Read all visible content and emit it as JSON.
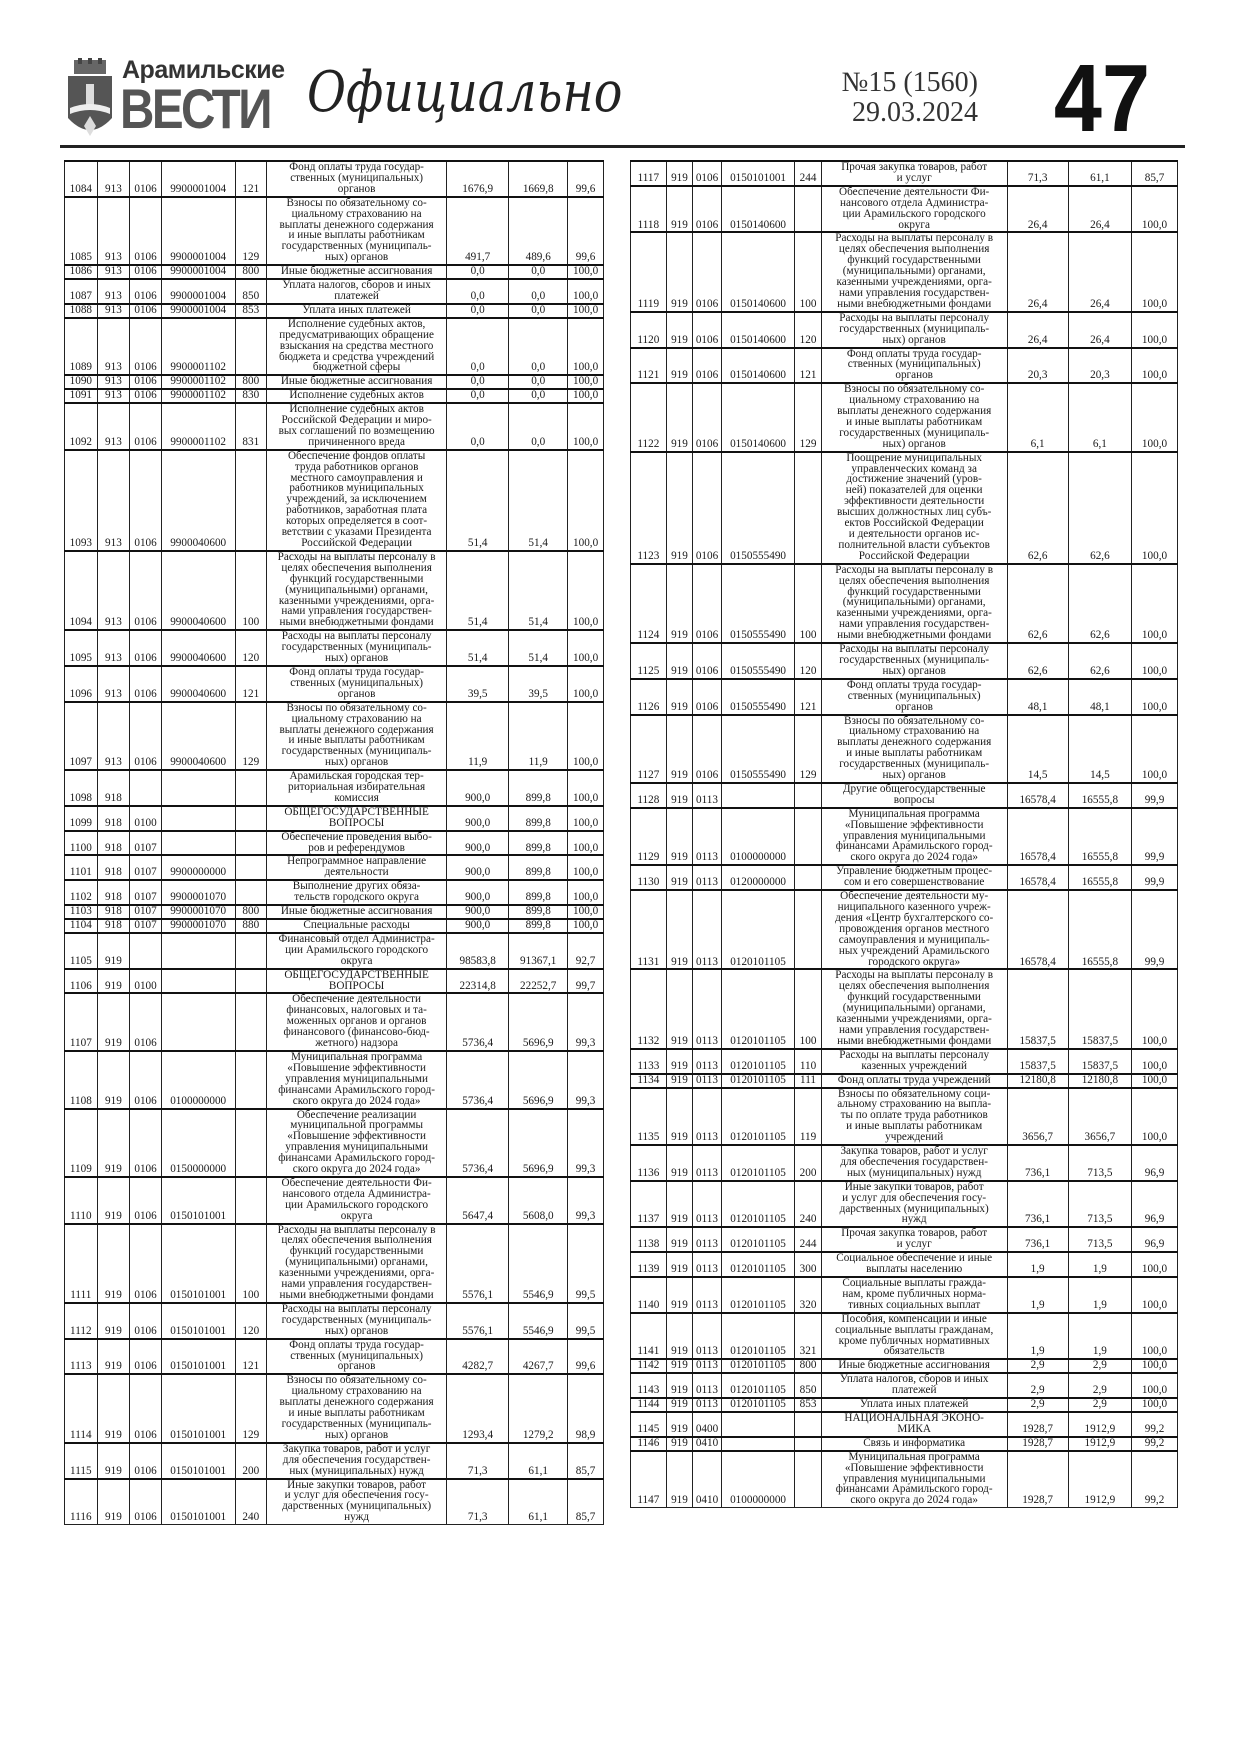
{
  "header": {
    "brand_line1": "Арамильские",
    "brand_line2": "ВЕСТИ",
    "section": "Официально",
    "issue": "№15 (1560)",
    "date": "29.03.2024",
    "page_number": "47"
  },
  "left_rows": [
    [
      "1084",
      "913",
      "0106",
      "9900001004",
      "121",
      "Фонд оплаты труда государ-\nственных (муниципальных)\nорганов",
      "1676,9",
      "1669,8",
      "99,6"
    ],
    [
      "1085",
      "913",
      "0106",
      "9900001004",
      "129",
      "Взносы по обязательному со-\nциальному страхованию на\nвыплаты денежного содержания\nи иные выплаты работникам\nгосударственных (муниципаль-\nных) органов",
      "491,7",
      "489,6",
      "99,6"
    ],
    [
      "1086",
      "913",
      "0106",
      "9900001004",
      "800",
      "Иные бюджетные ассигнования",
      "0,0",
      "0,0",
      "100,0"
    ],
    [
      "1087",
      "913",
      "0106",
      "9900001004",
      "850",
      "Уплата налогов, сборов и иных\nплатежей",
      "0,0",
      "0,0",
      "100,0"
    ],
    [
      "1088",
      "913",
      "0106",
      "9900001004",
      "853",
      "Уплата иных платежей",
      "0,0",
      "0,0",
      "100,0"
    ],
    [
      "1089",
      "913",
      "0106",
      "9900001102",
      "",
      "Исполнение судебных актов,\nпредусматривающих обращение\nвзыскания на средства местного\nбюджета и средства учреждений\nбюджетной сферы",
      "0,0",
      "0,0",
      "100,0"
    ],
    [
      "1090",
      "913",
      "0106",
      "9900001102",
      "800",
      "Иные бюджетные ассигнования",
      "0,0",
      "0,0",
      "100,0"
    ],
    [
      "1091",
      "913",
      "0106",
      "9900001102",
      "830",
      "Исполнение судебных актов",
      "0,0",
      "0,0",
      "100,0"
    ],
    [
      "1092",
      "913",
      "0106",
      "9900001102",
      "831",
      "Исполнение судебных актов\nРоссийской Федерации и миро-\nвых соглашений по возмещению\nпричиненного вреда",
      "0,0",
      "0,0",
      "100,0"
    ],
    [
      "1093",
      "913",
      "0106",
      "9900040600",
      "",
      "Обеспечение фондов оплаты\nтруда работников органов\nместного самоуправления и\nработников муниципальных\nучреждений, за исключением\nработников, заработная плата\nкоторых определяется в соот-\nветствии с указами Президента\nРоссийской Федерации",
      "51,4",
      "51,4",
      "100,0"
    ],
    [
      "1094",
      "913",
      "0106",
      "9900040600",
      "100",
      "Расходы на выплаты персоналу в\nцелях обеспечения выполнения\nфункций государственными\n(муниципальными) органами,\nказенными учреждениями, орга-\nнами управления государствен-\nными внебюджетными фондами",
      "51,4",
      "51,4",
      "100,0"
    ],
    [
      "1095",
      "913",
      "0106",
      "9900040600",
      "120",
      "Расходы на выплаты персоналу\nгосударственных (муниципаль-\nных) органов",
      "51,4",
      "51,4",
      "100,0"
    ],
    [
      "1096",
      "913",
      "0106",
      "9900040600",
      "121",
      "Фонд оплаты труда государ-\nственных (муниципальных)\nорганов",
      "39,5",
      "39,5",
      "100,0"
    ],
    [
      "1097",
      "913",
      "0106",
      "9900040600",
      "129",
      "Взносы по обязательному со-\nциальному страхованию на\nвыплаты денежного содержания\nи иные выплаты работникам\nгосударственных (муниципаль-\nных) органов",
      "11,9",
      "11,9",
      "100,0"
    ],
    [
      "1098",
      "918",
      "",
      "",
      "",
      "Арамильская городская тер-\nриториальная избирательная\nкомиссия",
      "900,0",
      "899,8",
      "100,0"
    ],
    [
      "1099",
      "918",
      "0100",
      "",
      "",
      "ОБЩЕГОСУДАРСТВЕННЫЕ\nВОПРОСЫ",
      "900,0",
      "899,8",
      "100,0"
    ],
    [
      "1100",
      "918",
      "0107",
      "",
      "",
      "Обеспечение проведения выбо-\nров и референдумов",
      "900,0",
      "899,8",
      "100,0"
    ],
    [
      "1101",
      "918",
      "0107",
      "9900000000",
      "",
      "Непрограммное направление\nдеятельности",
      "900,0",
      "899,8",
      "100,0"
    ],
    [
      "1102",
      "918",
      "0107",
      "9900001070",
      "",
      "Выполнение других обяза-\nтельств городского округа",
      "900,0",
      "899,8",
      "100,0"
    ],
    [
      "1103",
      "918",
      "0107",
      "9900001070",
      "800",
      "Иные бюджетные ассигнования",
      "900,0",
      "899,8",
      "100,0"
    ],
    [
      "1104",
      "918",
      "0107",
      "9900001070",
      "880",
      "Специальные расходы",
      "900,0",
      "899,8",
      "100,0"
    ],
    [
      "1105",
      "919",
      "",
      "",
      "",
      "Финансовый отдел Администра-\nции Арамильского городского\nокруга",
      "98583,8",
      "91367,1",
      "92,7"
    ],
    [
      "1106",
      "919",
      "0100",
      "",
      "",
      "ОБЩЕГОСУДАРСТВЕННЫЕ\nВОПРОСЫ",
      "22314,8",
      "22252,7",
      "99,7"
    ],
    [
      "1107",
      "919",
      "0106",
      "",
      "",
      "Обеспечение деятельности\nфинансовых, налоговых и та-\nможенных органов и органов\nфинансового (финансово-бюд-\nжетного) надзора",
      "5736,4",
      "5696,9",
      "99,3"
    ],
    [
      "1108",
      "919",
      "0106",
      "0100000000",
      "",
      "Муниципальная программа\n«Повышение эффективности\nуправления муниципальными\nфинансами Арамильского город-\nского округа до 2024 года»",
      "5736,4",
      "5696,9",
      "99,3"
    ],
    [
      "1109",
      "919",
      "0106",
      "0150000000",
      "",
      "Обеспечение реализации\nмуниципальной программы\n«Повышение эффективности\nуправления муниципальными\nфинансами Арамильского город-\nского округа до 2024 года»",
      "5736,4",
      "5696,9",
      "99,3"
    ],
    [
      "1110",
      "919",
      "0106",
      "0150101001",
      "",
      "Обеспечение деятельности Фи-\nнансового отдела Администра-\nции Арамильского городского\nокруга",
      "5647,4",
      "5608,0",
      "99,3"
    ],
    [
      "1111",
      "919",
      "0106",
      "0150101001",
      "100",
      "Расходы на выплаты персоналу в\nцелях обеспечения выполнения\nфункций государственными\n(муниципальными) органами,\nказенными учреждениями, орга-\nнами управления государствен-\nными внебюджетными фондами",
      "5576,1",
      "5546,9",
      "99,5"
    ],
    [
      "1112",
      "919",
      "0106",
      "0150101001",
      "120",
      "Расходы на выплаты персоналу\nгосударственных (муниципаль-\nных) органов",
      "5576,1",
      "5546,9",
      "99,5"
    ],
    [
      "1113",
      "919",
      "0106",
      "0150101001",
      "121",
      "Фонд оплаты труда государ-\nственных (муниципальных)\nорганов",
      "4282,7",
      "4267,7",
      "99,6"
    ],
    [
      "1114",
      "919",
      "0106",
      "0150101001",
      "129",
      "Взносы по обязательному со-\nциальному страхованию на\nвыплаты денежного содержания\nи иные выплаты работникам\nгосударственных (муниципаль-\nных) органов",
      "1293,4",
      "1279,2",
      "98,9"
    ],
    [
      "1115",
      "919",
      "0106",
      "0150101001",
      "200",
      "Закупка товаров, работ и услуг\nдля обеспечения государствен-\nных (муниципальных) нужд",
      "71,3",
      "61,1",
      "85,7"
    ],
    [
      "1116",
      "919",
      "0106",
      "0150101001",
      "240",
      "Иные закупки товаров, работ\nи услуг для обеспечения госу-\nдарственных (муниципальных)\nнужд",
      "71,3",
      "61,1",
      "85,7"
    ]
  ],
  "right_rows": [
    [
      "1117",
      "919",
      "0106",
      "0150101001",
      "244",
      "Прочая закупка товаров, работ\nи услуг",
      "71,3",
      "61,1",
      "85,7"
    ],
    [
      "1118",
      "919",
      "0106",
      "0150140600",
      "",
      "Обеспечение деятельности Фи-\nнансового отдела Администра-\nции Арамильского городского\nокруга",
      "26,4",
      "26,4",
      "100,0"
    ],
    [
      "1119",
      "919",
      "0106",
      "0150140600",
      "100",
      "Расходы на выплаты персоналу в\nцелях обеспечения выполнения\nфункций государственными\n(муниципальными) органами,\nказенными учреждениями, орга-\nнами управления государствен-\nными внебюджетными фондами",
      "26,4",
      "26,4",
      "100,0"
    ],
    [
      "1120",
      "919",
      "0106",
      "0150140600",
      "120",
      "Расходы на выплаты персоналу\nгосударственных (муниципаль-\nных) органов",
      "26,4",
      "26,4",
      "100,0"
    ],
    [
      "1121",
      "919",
      "0106",
      "0150140600",
      "121",
      "Фонд оплаты труда государ-\nственных (муниципальных)\nорганов",
      "20,3",
      "20,3",
      "100,0"
    ],
    [
      "1122",
      "919",
      "0106",
      "0150140600",
      "129",
      "Взносы по обязательному со-\nциальному страхованию на\nвыплаты денежного содержания\nи иные выплаты работникам\nгосударственных (муниципаль-\nных) органов",
      "6,1",
      "6,1",
      "100,0"
    ],
    [
      "1123",
      "919",
      "0106",
      "0150555490",
      "",
      "Поощрение муниципальных\nуправленческих команд за\nдостижение значений (уров-\nней) показателей для оценки\nэффективности деятельности\nвысших должностных лиц субъ-\nектов Российской Федерации\nи деятельности органов ис-\nполнительной власти субъектов\nРоссийской Федерации",
      "62,6",
      "62,6",
      "100,0"
    ],
    [
      "1124",
      "919",
      "0106",
      "0150555490",
      "100",
      "Расходы на выплаты персоналу в\nцелях обеспечения выполнения\nфункций государственными\n(муниципальными) органами,\nказенными учреждениями, орга-\nнами управления государствен-\nными внебюджетными фондами",
      "62,6",
      "62,6",
      "100,0"
    ],
    [
      "1125",
      "919",
      "0106",
      "0150555490",
      "120",
      "Расходы на выплаты персоналу\nгосударственных (муниципаль-\nных) органов",
      "62,6",
      "62,6",
      "100,0"
    ],
    [
      "1126",
      "919",
      "0106",
      "0150555490",
      "121",
      "Фонд оплаты труда государ-\nственных (муниципальных)\nорганов",
      "48,1",
      "48,1",
      "100,0"
    ],
    [
      "1127",
      "919",
      "0106",
      "0150555490",
      "129",
      "Взносы по обязательному со-\nциальному страхованию на\nвыплаты денежного содержания\nи иные выплаты работникам\nгосударственных (муниципаль-\nных) органов",
      "14,5",
      "14,5",
      "100,0"
    ],
    [
      "1128",
      "919",
      "0113",
      "",
      "",
      "Другие общегосударственные\nвопросы",
      "16578,4",
      "16555,8",
      "99,9"
    ],
    [
      "1129",
      "919",
      "0113",
      "0100000000",
      "",
      "Муниципальная программа\n«Повышение эффективности\nуправления муниципальными\nфинансами Арамильского город-\nского округа до 2024 года»",
      "16578,4",
      "16555,8",
      "99,9"
    ],
    [
      "1130",
      "919",
      "0113",
      "0120000000",
      "",
      "Управление бюджетным процес-\nсом и его совершенствование",
      "16578,4",
      "16555,8",
      "99,9"
    ],
    [
      "1131",
      "919",
      "0113",
      "0120101105",
      "",
      "Обеспечение деятельности му-\nниципального казенного учреж-\nдения «Центр бухгалтерского со-\nпровождения органов местного\nсамоуправления и муниципаль-\nных учреждений Арамильского\nгородского округа»",
      "16578,4",
      "16555,8",
      "99,9"
    ],
    [
      "1132",
      "919",
      "0113",
      "0120101105",
      "100",
      "Расходы на выплаты персоналу в\nцелях обеспечения выполнения\nфункций государственными\n(муниципальными) органами,\nказенными учреждениями, орга-\nнами управления государствен-\nными внебюджетными фондами",
      "15837,5",
      "15837,5",
      "100,0"
    ],
    [
      "1133",
      "919",
      "0113",
      "0120101105",
      "110",
      "Расходы на выплаты персоналу\nказенных учреждений",
      "15837,5",
      "15837,5",
      "100,0"
    ],
    [
      "1134",
      "919",
      "0113",
      "0120101105",
      "111",
      "Фонд оплаты труда учреждений",
      "12180,8",
      "12180,8",
      "100,0"
    ],
    [
      "1135",
      "919",
      "0113",
      "0120101105",
      "119",
      "Взносы по обязательному соци-\nальному страхованию на выпла-\nты по оплате труда работников\nи иные выплаты работникам\nучреждений",
      "3656,7",
      "3656,7",
      "100,0"
    ],
    [
      "1136",
      "919",
      "0113",
      "0120101105",
      "200",
      "Закупка товаров, работ и услуг\nдля обеспечения государствен-\nных (муниципальных) нужд",
      "736,1",
      "713,5",
      "96,9"
    ],
    [
      "1137",
      "919",
      "0113",
      "0120101105",
      "240",
      "Иные закупки товаров, работ\nи услуг для обеспечения госу-\nдарственных (муниципальных)\nнужд",
      "736,1",
      "713,5",
      "96,9"
    ],
    [
      "1138",
      "919",
      "0113",
      "0120101105",
      "244",
      "Прочая закупка товаров, работ\nи услуг",
      "736,1",
      "713,5",
      "96,9"
    ],
    [
      "1139",
      "919",
      "0113",
      "0120101105",
      "300",
      "Социальное обеспечение и иные\nвыплаты населению",
      "1,9",
      "1,9",
      "100,0"
    ],
    [
      "1140",
      "919",
      "0113",
      "0120101105",
      "320",
      "Социальные выплаты гражда-\nнам, кроме публичных норма-\nтивных социальных выплат",
      "1,9",
      "1,9",
      "100,0"
    ],
    [
      "1141",
      "919",
      "0113",
      "0120101105",
      "321",
      "Пособия, компенсации и иные\nсоциальные выплаты гражданам,\nкроме публичных нормативных\nобязательств",
      "1,9",
      "1,9",
      "100,0"
    ],
    [
      "1142",
      "919",
      "0113",
      "0120101105",
      "800",
      "Иные бюджетные ассигнования",
      "2,9",
      "2,9",
      "100,0"
    ],
    [
      "1143",
      "919",
      "0113",
      "0120101105",
      "850",
      "Уплата налогов, сборов и иных\nплатежей",
      "2,9",
      "2,9",
      "100,0"
    ],
    [
      "1144",
      "919",
      "0113",
      "0120101105",
      "853",
      "Уплата иных платежей",
      "2,9",
      "2,9",
      "100,0"
    ],
    [
      "1145",
      "919",
      "0400",
      "",
      "",
      "НАЦИОНАЛЬНАЯ ЭКОНО-\nМИКА",
      "1928,7",
      "1912,9",
      "99,2"
    ],
    [
      "1146",
      "919",
      "0410",
      "",
      "",
      "Связь и информатика",
      "1928,7",
      "1912,9",
      "99,2"
    ],
    [
      "1147",
      "919",
      "0410",
      "0100000000",
      "",
      "Муниципальная программа\n«Повышение эффективности\nуправления муниципальными\nфинансами Арамильского город-\nского округа до 2024 года»",
      "1928,7",
      "1912,9",
      "99,2"
    ]
  ]
}
